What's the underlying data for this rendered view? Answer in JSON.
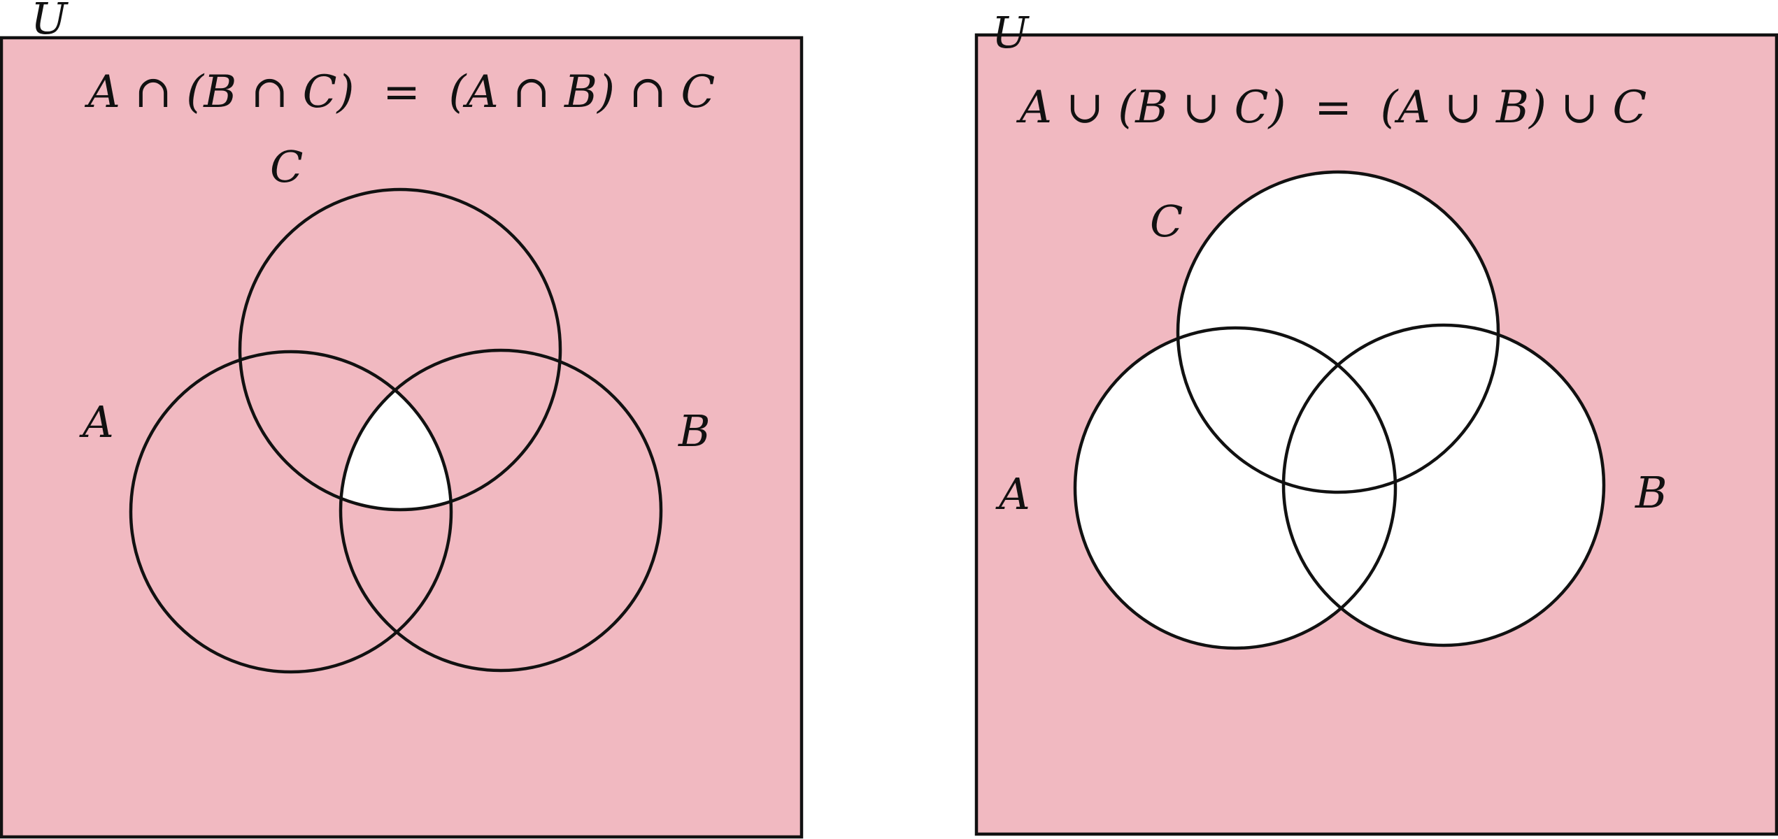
{
  "colors": {
    "shade": "#f1b9c1",
    "blank": "#ffffff",
    "stroke": "#111111"
  },
  "diagram_left": {
    "universe_label": "U",
    "formula": "A ∩ (B ∩ C)  =  (A ∩ B) ∩ C",
    "set_a_label": "A",
    "set_b_label": "B",
    "set_c_label": "C",
    "unshaded_region": "A ∩ B ∩ C"
  },
  "diagram_right": {
    "universe_label": "U",
    "formula": "A ∪ (B ∪ C)  =  (A ∪ B) ∪ C",
    "set_a_label": "A",
    "set_b_label": "B",
    "set_c_label": "C",
    "unshaded_region": "A ∪ B ∪ C"
  }
}
